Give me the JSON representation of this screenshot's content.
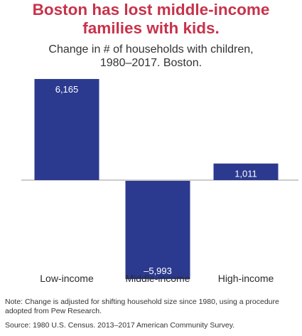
{
  "chart_data": {
    "type": "bar",
    "title_lines": [
      "Boston has lost middle-income",
      "families with kids."
    ],
    "subtitle_lines": [
      "Change in # of households with children,",
      "1980–2017. Boston."
    ],
    "categories": [
      "Low-income",
      "Middle-income",
      "High-income"
    ],
    "values": [
      6165,
      -5993,
      1011
    ],
    "value_labels": [
      "6,165",
      "–5,993",
      "1,011"
    ],
    "xlabel": "",
    "ylabel": "",
    "grid": false,
    "colors": {
      "bar": "#2b3a8f",
      "bar_label": "#ffffff",
      "title": "#c8324a",
      "baseline": "#9a9a9a"
    }
  },
  "footnotes": {
    "note_lines": [
      "Note: Change is adjusted for shifting household size since 1980, using a procedure",
      "adopted from Pew Research."
    ],
    "source": "Source: 1980 U.S. Census. 2013–2017 American Community Survey."
  }
}
